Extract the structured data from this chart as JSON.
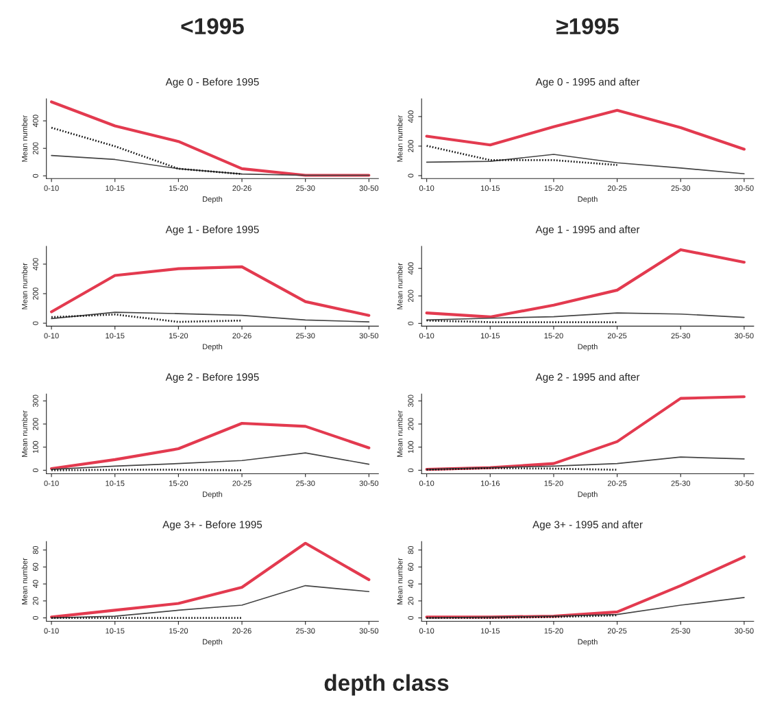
{
  "chart_data": [
    {
      "type": "line",
      "title": "Age 0 - Before 1995",
      "xlabel": "Depth",
      "ylabel": "Mean number",
      "annotations": [
        "<1995"
      ],
      "categories": [
        "0-10",
        "10-15",
        "15-20",
        "20-26",
        "25-30",
        "30-50"
      ],
      "ylim": [
        -20,
        560
      ],
      "yticks": [
        0,
        200,
        400
      ],
      "grid": false,
      "legend": false,
      "series": [
        {
          "color": "#e33a4f",
          "line_style": "solid",
          "values": [
            538,
            363,
            250,
            52,
            4,
            4
          ]
        },
        {
          "color": "#444444",
          "line_style": "solid",
          "values": [
            148,
            119,
            52,
            13,
            4,
            4
          ]
        },
        {
          "color": "#111111",
          "line_style": "dotted",
          "values": [
            350,
            215,
            52,
            13,
            null,
            null
          ]
        }
      ]
    },
    {
      "type": "line",
      "title": "Age 0 - 1995 and after",
      "xlabel": "Depth",
      "ylabel": "Mean number",
      "annotations": [
        "≥1995"
      ],
      "categories": [
        "0-10",
        "10-15",
        "15-20",
        "20-25",
        "25-30",
        "30-50"
      ],
      "ylim": [
        -20,
        520
      ],
      "yticks": [
        0,
        200,
        400
      ],
      "grid": false,
      "legend": false,
      "series": [
        {
          "color": "#e33a4f",
          "line_style": "solid",
          "values": [
            267,
            208,
            331,
            442,
            325,
            179
          ]
        },
        {
          "color": "#444444",
          "line_style": "solid",
          "values": [
            91,
            97,
            144,
            87,
            52,
            13
          ]
        },
        {
          "color": "#111111",
          "line_style": "dotted",
          "values": [
            202,
            105,
            105,
            72,
            null,
            null
          ]
        }
      ]
    },
    {
      "type": "line",
      "title": "Age 1 - Before 1995",
      "xlabel": "Depth",
      "ylabel": "Mean number",
      "categories": [
        "0-10",
        "10-15",
        "15-20",
        "20-26",
        "25-30",
        "30-50"
      ],
      "ylim": [
        -20,
        520
      ],
      "yticks": [
        0,
        200,
        400
      ],
      "grid": false,
      "legend": false,
      "series": [
        {
          "color": "#e33a4f",
          "line_style": "solid",
          "values": [
            77,
            323,
            369,
            382,
            146,
            53
          ]
        },
        {
          "color": "#444444",
          "line_style": "solid",
          "values": [
            31,
            74,
            65,
            53,
            22,
            9
          ]
        },
        {
          "color": "#111111",
          "line_style": "dotted",
          "values": [
            41,
            59,
            9,
            18,
            null,
            null
          ]
        }
      ]
    },
    {
      "type": "line",
      "title": "Age 1 - 1995 and after",
      "xlabel": "Depth",
      "ylabel": "Mean number",
      "categories": [
        "0-10",
        "10-15",
        "15-20",
        "20-25",
        "25-30",
        "30-50"
      ],
      "ylim": [
        -20,
        560
      ],
      "yticks": [
        0,
        200,
        400
      ],
      "grid": false,
      "legend": false,
      "series": [
        {
          "color": "#e33a4f",
          "line_style": "solid",
          "values": [
            76,
            47,
            133,
            242,
            536,
            445
          ]
        },
        {
          "color": "#444444",
          "line_style": "solid",
          "values": [
            25,
            38,
            49,
            76,
            68,
            44
          ]
        },
        {
          "color": "#111111",
          "line_style": "dotted",
          "values": [
            21,
            9,
            9,
            9,
            null,
            null
          ]
        }
      ]
    },
    {
      "type": "line",
      "title": "Age 2 - Before 1995",
      "xlabel": "Depth",
      "ylabel": "Mean number",
      "categories": [
        "0-10",
        "10-15",
        "15-20",
        "20-25",
        "25-30",
        "30-50"
      ],
      "ylim": [
        -15,
        330
      ],
      "yticks": [
        0,
        100,
        200,
        300
      ],
      "grid": false,
      "legend": false,
      "series": [
        {
          "color": "#e33a4f",
          "line_style": "solid",
          "values": [
            7,
            46,
            93,
            203,
            190,
            97
          ]
        },
        {
          "color": "#444444",
          "line_style": "solid",
          "values": [
            4,
            18,
            29,
            42,
            75,
            26
          ]
        },
        {
          "color": "#111111",
          "line_style": "dotted",
          "values": [
            0,
            2,
            2,
            0,
            null,
            null
          ]
        }
      ]
    },
    {
      "type": "line",
      "title": "Age 2 - 1995 and after",
      "xlabel": "Depth",
      "ylabel": "Mean number",
      "categories": [
        "0-10",
        "10-16",
        "15-20",
        "20-25",
        "25-30",
        "30-50"
      ],
      "ylim": [
        -15,
        330
      ],
      "yticks": [
        0,
        100,
        200,
        300
      ],
      "grid": false,
      "legend": false,
      "series": [
        {
          "color": "#e33a4f",
          "line_style": "solid",
          "values": [
            4,
            11,
            29,
            124,
            311,
            318
          ]
        },
        {
          "color": "#444444",
          "line_style": "solid",
          "values": [
            4,
            11,
            18,
            29,
            57,
            49
          ]
        },
        {
          "color": "#111111",
          "line_style": "dotted",
          "values": [
            2,
            9,
            7,
            2,
            null,
            null
          ]
        }
      ]
    },
    {
      "type": "line",
      "title": "Age 3+ - Before 1995",
      "xlabel": "Depth",
      "ylabel": "Mean number",
      "categories": [
        "0-10",
        "10-15",
        "15-20",
        "20-26",
        "25-30",
        "30-50"
      ],
      "ylim": [
        -4,
        90
      ],
      "yticks": [
        0,
        20,
        40,
        60,
        80
      ],
      "grid": false,
      "legend": false,
      "series": [
        {
          "color": "#e33a4f",
          "line_style": "solid",
          "values": [
            1,
            9,
            17,
            36,
            88,
            45
          ]
        },
        {
          "color": "#444444",
          "line_style": "solid",
          "values": [
            0,
            2,
            9,
            15,
            38,
            31
          ]
        },
        {
          "color": "#111111",
          "line_style": "dotted",
          "values": [
            0,
            0,
            0,
            0,
            null,
            null
          ]
        }
      ]
    },
    {
      "type": "line",
      "title": "Age 3+ - 1995 and after",
      "xlabel": "Depth",
      "ylabel": "Mean number",
      "annotations": [
        "depth class"
      ],
      "categories": [
        "0-10",
        "10-15",
        "15-20",
        "20-25",
        "25-30",
        "30-50"
      ],
      "ylim": [
        -4,
        90
      ],
      "yticks": [
        0,
        20,
        40,
        60,
        80
      ],
      "grid": false,
      "legend": false,
      "series": [
        {
          "color": "#e33a4f",
          "line_style": "solid",
          "values": [
            1,
            1,
            2,
            7,
            38,
            72
          ]
        },
        {
          "color": "#444444",
          "line_style": "solid",
          "values": [
            0,
            1,
            2,
            4,
            15,
            24
          ]
        },
        {
          "color": "#111111",
          "line_style": "dotted",
          "values": [
            0,
            0,
            1,
            3,
            null,
            null
          ]
        }
      ]
    }
  ]
}
